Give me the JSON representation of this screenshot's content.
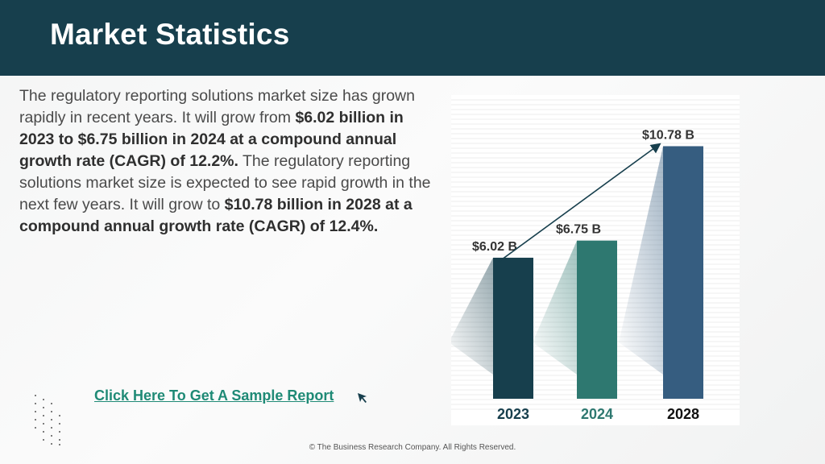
{
  "header": {
    "title": "Market Statistics"
  },
  "body": {
    "segments": [
      {
        "text": "The regulatory reporting solutions market size has grown rapidly in recent years. It will grow from ",
        "bold": false
      },
      {
        "text": "$6.02 billion in 2023 to $6.75 billion in 2024 at a compound annual growth rate (CAGR) of 12.2%.",
        "bold": true
      },
      {
        "text": "  The regulatory reporting solutions market size is expected to see rapid growth in the next few years. It will grow to ",
        "bold": false
      },
      {
        "text": "$10.78 billion in 2028 at a compound annual growth rate (CAGR) of 12.4%.",
        "bold": true
      }
    ]
  },
  "cta": {
    "label": "Click Here To Get A Sample Report"
  },
  "footer": {
    "text": "© The Business Research Company. All Rights Reserved."
  },
  "chart_data": {
    "type": "bar",
    "categories": [
      "2023",
      "2024",
      "2028"
    ],
    "values": [
      6.02,
      6.75,
      10.78
    ],
    "data_labels": [
      "$6.02  B",
      "$6.75  B",
      "$10.78  B"
    ],
    "bar_colors": [
      "#173f4d",
      "#2e7870",
      "#365d80"
    ],
    "category_label_colors": [
      "#173f4d",
      "#2e7870",
      "#111111"
    ],
    "ylim": [
      0,
      12
    ],
    "trend_arrow": true,
    "title": "",
    "xlabel": "",
    "ylabel": ""
  }
}
